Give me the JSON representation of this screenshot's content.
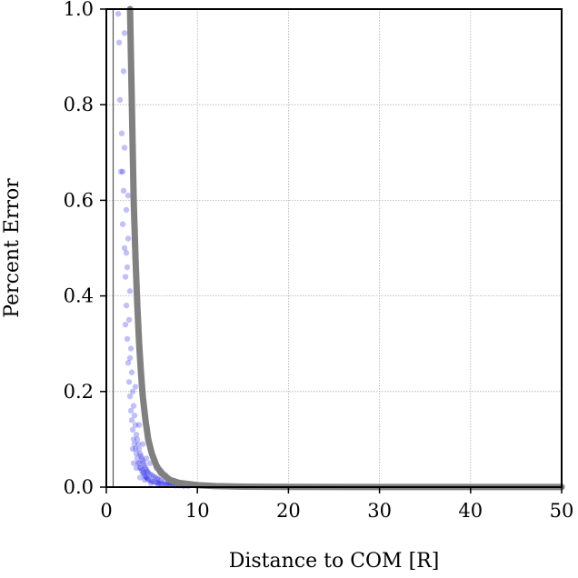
{
  "chart_data": {
    "type": "scatter",
    "xlabel": "Distance to COM [R]",
    "ylabel": "Percent Error",
    "xlim": [
      0,
      50
    ],
    "ylim": [
      0,
      1.0
    ],
    "x_ticks": [
      0,
      10,
      20,
      30,
      40,
      50
    ],
    "x_tick_labels": [
      "0",
      "10",
      "20",
      "30",
      "40",
      "50"
    ],
    "y_ticks": [
      0.0,
      0.2,
      0.4,
      0.6,
      0.8,
      1.0
    ],
    "y_tick_labels": [
      "0.0",
      "0.2",
      "0.4",
      "0.6",
      "0.8",
      "1.0"
    ],
    "grid": true,
    "vertical_reference_line_x": 0.75,
    "scatter_color": "#1f1fe6",
    "curve_color": "#808080",
    "series": [
      {
        "kind": "scatter",
        "points": [
          [
            1.3,
            0.99
          ],
          [
            1.4,
            0.93
          ],
          [
            1.5,
            0.81
          ],
          [
            1.6,
            0.66
          ],
          [
            1.7,
            0.74
          ],
          [
            1.9,
            0.87
          ],
          [
            2.0,
            0.95
          ],
          [
            1.8,
            0.55
          ],
          [
            1.9,
            0.62
          ],
          [
            2.0,
            0.5
          ],
          [
            2.1,
            0.44
          ],
          [
            2.0,
            0.71
          ],
          [
            2.2,
            0.38
          ],
          [
            2.2,
            0.58
          ],
          [
            2.3,
            0.31
          ],
          [
            2.3,
            0.46
          ],
          [
            2.4,
            0.26
          ],
          [
            2.4,
            0.52
          ],
          [
            2.5,
            0.22
          ],
          [
            2.5,
            0.35
          ],
          [
            2.6,
            0.19
          ],
          [
            2.6,
            0.41
          ],
          [
            2.7,
            0.16
          ],
          [
            2.7,
            0.29
          ],
          [
            2.8,
            0.14
          ],
          [
            2.8,
            0.24
          ],
          [
            2.9,
            0.12
          ],
          [
            2.9,
            0.2
          ],
          [
            3.0,
            0.1
          ],
          [
            3.0,
            0.17
          ],
          [
            3.1,
            0.09
          ],
          [
            3.1,
            0.15
          ],
          [
            3.2,
            0.08
          ],
          [
            3.2,
            0.13
          ],
          [
            3.3,
            0.07
          ],
          [
            3.3,
            0.11
          ],
          [
            3.4,
            0.06
          ],
          [
            3.4,
            0.1
          ],
          [
            3.5,
            0.05
          ],
          [
            3.5,
            0.09
          ],
          [
            3.6,
            0.05
          ],
          [
            3.6,
            0.08
          ],
          [
            3.7,
            0.04
          ],
          [
            3.7,
            0.07
          ],
          [
            3.8,
            0.04
          ],
          [
            3.8,
            0.065
          ],
          [
            3.9,
            0.035
          ],
          [
            3.9,
            0.06
          ],
          [
            4.0,
            0.03
          ],
          [
            4.0,
            0.055
          ],
          [
            4.1,
            0.03
          ],
          [
            4.1,
            0.05
          ],
          [
            4.2,
            0.025
          ],
          [
            4.2,
            0.045
          ],
          [
            4.3,
            0.022
          ],
          [
            4.3,
            0.04
          ],
          [
            4.4,
            0.02
          ],
          [
            4.4,
            0.036
          ],
          [
            4.5,
            0.018
          ],
          [
            4.5,
            0.033
          ],
          [
            4.6,
            0.016
          ],
          [
            4.6,
            0.03
          ],
          [
            4.8,
            0.014
          ],
          [
            4.8,
            0.027
          ],
          [
            5.0,
            0.012
          ],
          [
            5.0,
            0.025
          ],
          [
            5.2,
            0.011
          ],
          [
            5.2,
            0.022
          ],
          [
            5.4,
            0.01
          ],
          [
            5.4,
            0.02
          ],
          [
            5.6,
            0.009
          ],
          [
            5.6,
            0.018
          ],
          [
            5.8,
            0.008
          ],
          [
            5.8,
            0.016
          ],
          [
            6.0,
            0.007
          ],
          [
            6.0,
            0.014
          ],
          [
            6.2,
            0.006
          ],
          [
            6.2,
            0.03
          ],
          [
            6.4,
            0.006
          ],
          [
            6.4,
            0.012
          ],
          [
            6.6,
            0.005
          ],
          [
            6.6,
            0.02
          ],
          [
            6.8,
            0.005
          ],
          [
            6.8,
            0.01
          ],
          [
            7.0,
            0.004
          ],
          [
            7.0,
            0.009
          ],
          [
            7.3,
            0.004
          ],
          [
            7.3,
            0.008
          ],
          [
            7.6,
            0.003
          ],
          [
            7.6,
            0.007
          ],
          [
            8.0,
            0.003
          ],
          [
            8.0,
            0.006
          ],
          [
            8.5,
            0.002
          ],
          [
            9.0,
            0.002
          ],
          [
            3.2,
            0.21
          ],
          [
            3.6,
            0.13
          ],
          [
            4.0,
            0.09
          ],
          [
            4.4,
            0.06
          ],
          [
            4.8,
            0.05
          ],
          [
            5.5,
            0.04
          ],
          [
            6.0,
            0.035
          ],
          [
            6.5,
            0.025
          ],
          [
            2.1,
            0.34
          ],
          [
            2.4,
            0.61
          ],
          [
            2.2,
            0.49
          ],
          [
            1.8,
            0.66
          ],
          [
            2.6,
            0.27
          ],
          [
            2.9,
            0.08
          ],
          [
            3.0,
            0.05
          ],
          [
            3.3,
            0.04
          ],
          [
            3.7,
            0.02
          ],
          [
            4.2,
            0.015
          ],
          [
            4.9,
            0.008
          ],
          [
            5.7,
            0.006
          ]
        ]
      },
      {
        "kind": "line",
        "points": [
          [
            2.6,
            1.0
          ],
          [
            2.7,
            0.9
          ],
          [
            2.8,
            0.8
          ],
          [
            2.9,
            0.7
          ],
          [
            3.0,
            0.6
          ],
          [
            3.2,
            0.48
          ],
          [
            3.4,
            0.38
          ],
          [
            3.6,
            0.3
          ],
          [
            3.8,
            0.24
          ],
          [
            4.0,
            0.19
          ],
          [
            4.3,
            0.14
          ],
          [
            4.6,
            0.1
          ],
          [
            5.0,
            0.07
          ],
          [
            5.5,
            0.045
          ],
          [
            6.0,
            0.03
          ],
          [
            7.0,
            0.015
          ],
          [
            8.0,
            0.009
          ],
          [
            10.0,
            0.004
          ],
          [
            12.0,
            0.002
          ],
          [
            15.0,
            0.001
          ],
          [
            20.0,
            0.0005
          ],
          [
            30.0,
            0.0002
          ],
          [
            40.0,
            0.0001
          ],
          [
            50.0,
            0.0001
          ]
        ]
      }
    ]
  }
}
